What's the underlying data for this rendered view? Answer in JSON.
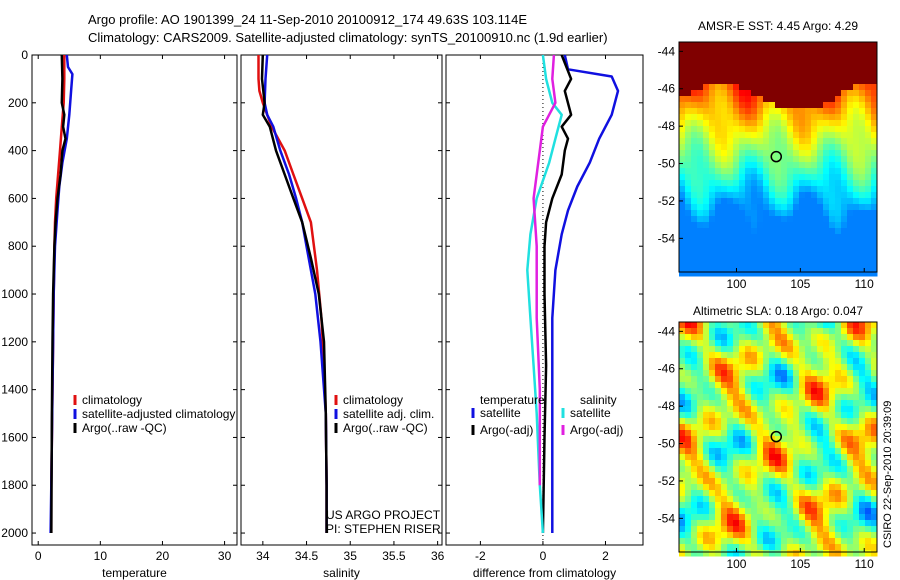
{
  "header": {
    "line1": "Argo profile: AO 1901399_24 11-Sep-2010 20100912_174 49.63S 103.114E",
    "line2": "Climatology: CARS2009. Satellite-adjusted climatology: synTS_20100910.nc (1.9d earlier)"
  },
  "side_label": "CSIRO 22-Sep-2010 20:39:09",
  "colors": {
    "red": "#e01010",
    "blue": "#1010e0",
    "black": "#000000",
    "cyan": "#20e0e0",
    "magenta": "#e020e0"
  },
  "chart_data": [
    {
      "id": "temperature",
      "type": "line",
      "xlabel": "temperature",
      "ylabel": "",
      "xlim": [
        -1,
        32
      ],
      "ylim": [
        2050,
        0
      ],
      "xticks": [
        0,
        10,
        20,
        30
      ],
      "yticks": [
        0,
        200,
        400,
        600,
        800,
        1000,
        1200,
        1400,
        1600,
        1800,
        2000
      ],
      "legend": [
        "climatology",
        "satellite-adjusted climatology",
        "Argo(..raw -QC)"
      ],
      "legend_placement": "lower-middle",
      "series": [
        {
          "name": "climatology",
          "color": "red",
          "x": [
            4.2,
            4.2,
            4.1,
            3.8,
            3.5,
            3.2,
            2.9,
            2.7,
            2.6,
            2.5,
            2.4,
            2.3,
            2.2,
            2.1,
            2.1
          ],
          "y": [
            0,
            100,
            200,
            300,
            400,
            500,
            600,
            700,
            800,
            1000,
            1200,
            1400,
            1600,
            1800,
            2000
          ]
        },
        {
          "name": "satellite-adjusted climatology",
          "color": "blue",
          "x": [
            4.6,
            4.8,
            5.5,
            5.3,
            5.0,
            4.6,
            3.9,
            3.4,
            3.1,
            2.7,
            2.5,
            2.4,
            2.3,
            2.2,
            2.1,
            2.0
          ],
          "y": [
            0,
            50,
            80,
            150,
            250,
            350,
            450,
            550,
            650,
            800,
            1000,
            1200,
            1400,
            1600,
            1800,
            2000
          ]
        },
        {
          "name": "Argo(..raw -QC)",
          "color": "black",
          "x": [
            3.8,
            3.9,
            3.8,
            4.2,
            4.0,
            4.4,
            3.9,
            3.6,
            3.1,
            2.8,
            2.6,
            2.4,
            2.3,
            2.2,
            2.1
          ],
          "y": [
            0,
            100,
            200,
            250,
            300,
            350,
            400,
            500,
            600,
            700,
            800,
            1000,
            1200,
            1500,
            2000
          ]
        }
      ]
    },
    {
      "id": "salinity",
      "type": "line",
      "xlabel": "salinity",
      "ylabel": "",
      "xlim": [
        33.75,
        36.05
      ],
      "ylim": [
        2050,
        0
      ],
      "xticks": [
        34,
        34.5,
        35,
        35.5,
        36
      ],
      "legend": [
        "climatology",
        "satellite adj. clim.",
        "Argo(..raw -QC)"
      ],
      "legend_placement": "lower-middle",
      "annotations": [
        "US ARGO PROJECT",
        "PI: STEPHEN RISER"
      ],
      "series": [
        {
          "name": "climatology",
          "color": "red",
          "x": [
            33.95,
            33.95,
            33.96,
            34.0,
            34.1,
            34.25,
            34.35,
            34.45,
            34.55,
            34.62,
            34.67,
            34.7,
            34.72,
            34.73,
            34.73
          ],
          "y": [
            0,
            100,
            150,
            200,
            300,
            400,
            500,
            600,
            700,
            900,
            1100,
            1300,
            1500,
            1800,
            2000
          ]
        },
        {
          "name": "satellite adj. clim.",
          "color": "blue",
          "x": [
            34.05,
            34.03,
            34.02,
            34.05,
            34.12,
            34.2,
            34.3,
            34.38,
            34.45,
            34.5,
            34.6,
            34.66,
            34.72,
            34.73,
            34.73
          ],
          "y": [
            0,
            100,
            200,
            250,
            300,
            400,
            500,
            600,
            700,
            800,
            1000,
            1200,
            1500,
            1800,
            2000
          ]
        },
        {
          "name": "Argo(..raw -QC)",
          "color": "black",
          "x": [
            34.0,
            33.99,
            34.02,
            34.0,
            34.08,
            34.15,
            34.25,
            34.35,
            34.45,
            34.55,
            34.64,
            34.7,
            34.72,
            34.73,
            34.73
          ],
          "y": [
            0,
            100,
            200,
            250,
            300,
            400,
            500,
            600,
            700,
            850,
            1000,
            1200,
            1500,
            1800,
            2000
          ]
        }
      ]
    },
    {
      "id": "difference",
      "type": "line",
      "xlabel": "difference from climatology",
      "ylabel": "",
      "xlim": [
        -3.1,
        3.2
      ],
      "ylim": [
        2050,
        0
      ],
      "xticks": [
        -2,
        0,
        2
      ],
      "legend_left_title": "temperature",
      "legend_right_title": "salinity",
      "legend": [
        "satellite",
        "Argo(-adj)",
        "satellite",
        "Argo(-adj)"
      ],
      "legend_placement": "lower-middle",
      "zero_line": true,
      "series": [
        {
          "name": "satellite",
          "group": "temperature",
          "color": "blue",
          "x": [
            0.7,
            0.8,
            2.2,
            2.4,
            2.2,
            1.8,
            1.5,
            1.1,
            0.8,
            0.6,
            0.4,
            0.3,
            0.3,
            0.3,
            0.3
          ],
          "y": [
            0,
            60,
            90,
            150,
            250,
            350,
            450,
            550,
            650,
            750,
            900,
            1100,
            1400,
            1700,
            2000
          ]
        },
        {
          "name": "Argo(-adj)",
          "group": "temperature",
          "color": "black",
          "x": [
            0.6,
            0.9,
            0.7,
            0.9,
            0.6,
            0.8,
            0.7,
            0.6,
            0.3,
            0.1,
            0.05,
            0.05,
            0.1,
            0.05,
            0.0
          ],
          "y": [
            0,
            100,
            150,
            250,
            300,
            350,
            400,
            500,
            600,
            700,
            800,
            1000,
            1300,
            1600,
            2000
          ]
        },
        {
          "name": "satellite",
          "group": "salinity",
          "color": "cyan",
          "x": [
            0.0,
            0.1,
            0.3,
            0.6,
            0.4,
            0.2,
            -0.2,
            -0.4,
            -0.5,
            -0.4,
            -0.3,
            -0.2,
            -0.1,
            0.0
          ],
          "y": [
            0,
            100,
            200,
            250,
            350,
            450,
            600,
            750,
            900,
            1100,
            1300,
            1500,
            1800,
            2000
          ]
        },
        {
          "name": "Argo(-adj)",
          "group": "salinity",
          "color": "magenta",
          "x": [
            0.35,
            0.3,
            0.4,
            0.0,
            -0.1,
            -0.3,
            -0.2,
            -0.2,
            -0.1,
            -0.1
          ],
          "y": [
            0,
            100,
            200,
            300,
            400,
            600,
            800,
            1100,
            1400,
            1800
          ]
        }
      ]
    },
    {
      "id": "amsr-sst-map",
      "type": "heatmap",
      "title": "AMSR-E SST: 4.45 Argo: 4.29",
      "xlim": [
        95.5,
        111
      ],
      "ylim": [
        -55.8,
        -43.5
      ],
      "xticks": [
        100,
        105,
        110
      ],
      "yticks": [
        -44,
        -46,
        -48,
        -50,
        -52,
        -54
      ],
      "marker": {
        "lon": 103.114,
        "lat": -49.63
      },
      "colormap": "jet"
    },
    {
      "id": "altimetric-sla-map",
      "type": "heatmap",
      "title": "Altimetric SLA: 0.18 Argo: 0.047",
      "xlim": [
        95.5,
        111
      ],
      "ylim": [
        -55.8,
        -43.5
      ],
      "xticks": [
        100,
        105,
        110
      ],
      "yticks": [
        -44,
        -46,
        -48,
        -50,
        -52,
        -54
      ],
      "marker": {
        "lon": 103.114,
        "lat": -49.63
      },
      "colormap": "jet"
    }
  ]
}
